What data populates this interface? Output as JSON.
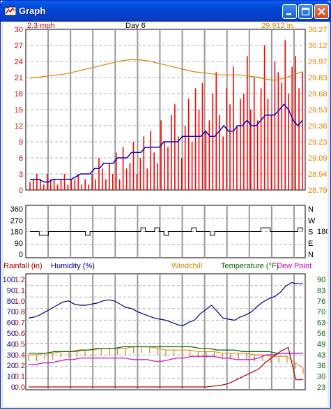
{
  "window": {
    "title": "Graph",
    "icon": "weather-station-icon",
    "controls": {
      "minimize": "minimize-icon",
      "maximize": "maximize-icon",
      "close": "close-icon"
    }
  },
  "colors": {
    "wind": "#ff0000",
    "wind_avg": "#0000cc",
    "pressure": "#e08000",
    "humidity": "#000099",
    "windchill": "#e08000",
    "temperature": "#006600",
    "dewpoint": "#cc00cc",
    "rainfall": "#aa0000",
    "grid": "#b0b0b0",
    "day_separator": "#999999"
  },
  "panel_wind": {
    "left_label": "2.3 mph",
    "center_label": "Day 6",
    "right_label": "29.912 in."
  },
  "panel_direction": {
    "right_value": "180"
  },
  "panel_climate": {
    "legend": {
      "rainfall": "Rainfall (in)",
      "humidity": "Humidity (%)",
      "windchill": "Windchill",
      "temperature": "Temperature (°F)",
      "dewpoint": "Dew Point"
    }
  },
  "chart_data": [
    {
      "type": "line",
      "title": "",
      "series": [
        {
          "name": "Wind Speed",
          "y": [
            1.5,
            2,
            3,
            2,
            1,
            3,
            2,
            2,
            1,
            2,
            3,
            1,
            2,
            2,
            3,
            1,
            2,
            1,
            3,
            2,
            6,
            4,
            2,
            5,
            3,
            7,
            2,
            8,
            4,
            5,
            9,
            3,
            6,
            10,
            4,
            11,
            7,
            5,
            13,
            9,
            8,
            14,
            16,
            10,
            6,
            12,
            17,
            9,
            19,
            15,
            20,
            11,
            13,
            18,
            22,
            14,
            10,
            19,
            16,
            23,
            12,
            17,
            18,
            25,
            15,
            21,
            13,
            19,
            27,
            17,
            14,
            24,
            22,
            20,
            28,
            18,
            23,
            25,
            19,
            22
          ]
        },
        {
          "name": "Wind Average",
          "y": [
            2,
            2,
            2,
            1.5,
            1.5,
            2,
            2,
            2,
            2,
            2,
            2.5,
            3,
            3,
            3,
            4,
            4,
            5,
            5,
            5,
            6,
            6,
            6,
            7,
            7,
            7,
            8,
            8,
            8,
            8,
            9,
            9,
            9,
            9,
            10,
            10,
            10,
            10,
            10,
            11,
            10,
            10,
            11,
            12,
            11,
            11,
            12,
            12,
            13,
            12,
            12,
            13,
            14,
            14,
            14,
            15,
            16,
            15,
            13,
            12,
            13
          ]
        },
        {
          "name": "Barometric Pressure",
          "y": [
            29.82,
            29.83,
            29.84,
            29.85,
            29.86,
            29.88,
            29.9,
            29.92,
            29.94,
            29.96,
            29.98,
            29.99,
            29.99,
            29.98,
            29.96,
            29.94,
            29.92,
            29.9,
            29.88,
            29.87,
            29.86,
            29.85,
            29.85,
            29.85,
            29.84,
            29.83,
            29.81,
            29.8,
            29.82,
            29.85,
            29.88
          ]
        }
      ],
      "y_left": {
        "min": 0,
        "max": 30,
        "ticks": [
          "30",
          "27",
          "24",
          "21",
          "18",
          "15",
          "12",
          "9",
          "6",
          "3",
          "0"
        ]
      },
      "y_right": {
        "min": 28.79,
        "max": 30.27,
        "ticks": [
          "30.27",
          "30.12",
          "29.97",
          "29.83",
          "29.68",
          "29.53",
          "29.38",
          "29.23",
          "29.09",
          "28.94",
          "28.79"
        ]
      }
    },
    {
      "type": "line",
      "series": [
        {
          "name": "Wind Direction",
          "y": [
            180,
            180,
            150,
            150,
            180,
            180,
            180,
            180,
            180,
            180,
            180,
            180,
            150,
            180,
            180,
            180,
            180,
            180,
            180,
            180,
            180,
            180,
            180,
            180,
            210,
            180,
            180,
            210,
            180,
            150,
            180,
            180,
            180,
            180,
            180,
            210,
            180,
            180,
            180,
            150,
            180,
            180,
            180,
            180,
            180,
            180,
            180,
            180,
            180,
            180,
            210,
            210,
            180,
            180,
            180,
            180,
            180,
            180,
            210,
            180
          ]
        }
      ],
      "y_left": {
        "min": 0,
        "max": 360,
        "ticks": [
          "360",
          "270",
          "180",
          "90",
          "0"
        ]
      },
      "y_right": {
        "ticks": [
          "N",
          "W",
          "S",
          "E",
          "N"
        ]
      }
    },
    {
      "type": "line",
      "series": [
        {
          "name": "Humidity",
          "y": [
            64,
            65,
            67,
            70,
            73,
            76,
            79,
            80,
            77,
            76,
            76,
            77,
            78,
            80,
            81,
            80,
            77,
            74,
            73,
            70,
            68,
            66,
            64,
            63,
            62,
            60,
            58,
            57,
            60,
            62,
            68,
            72,
            76,
            70,
            64,
            63,
            62,
            65,
            67,
            70,
            75,
            79,
            82,
            84,
            88,
            94,
            97,
            96,
            96
          ]
        },
        {
          "name": "Windchill",
          "y": [
            43,
            43,
            44,
            44,
            45,
            45,
            45,
            46,
            46,
            47,
            47,
            47,
            47,
            48,
            48,
            48,
            47,
            46,
            46,
            46,
            46,
            45,
            45,
            45,
            44,
            44,
            44,
            44,
            43,
            43,
            42,
            42,
            42,
            38,
            35
          ]
        },
        {
          "name": "Temperature",
          "y": [
            44,
            44,
            44,
            45,
            45,
            45,
            46,
            46,
            47,
            47,
            47,
            48,
            48,
            48,
            48,
            48,
            48,
            48,
            48,
            48,
            47,
            47,
            46,
            46,
            46,
            45,
            45,
            45,
            45,
            44,
            44,
            44,
            44
          ]
        },
        {
          "name": "Dew Point",
          "y": [
            37,
            37,
            38,
            38,
            39,
            40,
            40,
            41,
            41,
            41,
            41,
            41,
            41,
            41,
            40,
            40,
            40,
            39,
            39,
            40,
            41,
            41,
            42,
            42,
            42,
            42,
            41,
            41,
            40,
            40,
            40,
            41,
            43,
            43,
            44,
            44,
            44,
            44
          ]
        },
        {
          "name": "Rainfall",
          "y": [
            0,
            0,
            0,
            0,
            0,
            0,
            0,
            0,
            0,
            0,
            0,
            0,
            0,
            0,
            0,
            0,
            0,
            0,
            0,
            0,
            0,
            0,
            0,
            0,
            0,
            0.01,
            0.02,
            0.04,
            0.08,
            0.12,
            0.16,
            0.2,
            0.28,
            0.34,
            0.4,
            0.44,
            0.08,
            0.08
          ]
        }
      ],
      "y_left_humidity": {
        "min": 0,
        "max": 100,
        "ticks": [
          "100",
          "90",
          "80",
          "70",
          "60",
          "50",
          "40",
          "30",
          "20",
          "10",
          "0"
        ]
      },
      "y_left_rain": {
        "min": 0,
        "max": 1.2,
        "ticks": [
          "1.2",
          "1.1",
          "1.0",
          "0.8",
          "0.7",
          "0.6",
          "0.5",
          "0.4",
          "0.2",
          "0.1",
          "0.0"
        ]
      },
      "y_right": {
        "min": 23,
        "max": 90,
        "ticks": [
          "90",
          "83",
          "76",
          "70",
          "63",
          "56",
          "49",
          "43",
          "36",
          "30",
          "23"
        ]
      }
    }
  ]
}
